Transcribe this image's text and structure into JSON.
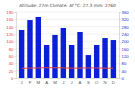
{
  "chart_data": {
    "type": "bar",
    "title": "Altitude: 27m   Climate: Af   °C: 27.3   mm: 2760",
    "categories": [
      "J",
      "F",
      "M",
      "A",
      "M",
      "J",
      "J",
      "A",
      "S",
      "O",
      "N",
      "D"
    ],
    "series": [
      {
        "type": "bar",
        "color": "#0a1fd6",
        "axis": "y2",
        "values": [
          262,
          316,
          333,
          180,
          235,
          273,
          180,
          251,
          125,
          180,
          218,
          207
        ]
      },
      {
        "type": "line",
        "color": "#e8413c",
        "values": [
          26.5,
          27,
          27.5,
          28,
          28,
          27.5,
          27,
          27,
          27.5,
          27.5,
          27,
          26.5
        ]
      }
    ],
    "ylim": [
      0,
      180
    ],
    "yticks": [
      0,
      20,
      40,
      60,
      80,
      100,
      120,
      140,
      160,
      180
    ],
    "y2lim": [
      0,
      360
    ],
    "y2ticks": [
      0,
      40,
      80,
      120,
      160,
      200,
      240,
      280,
      320,
      360
    ],
    "grid": true
  }
}
